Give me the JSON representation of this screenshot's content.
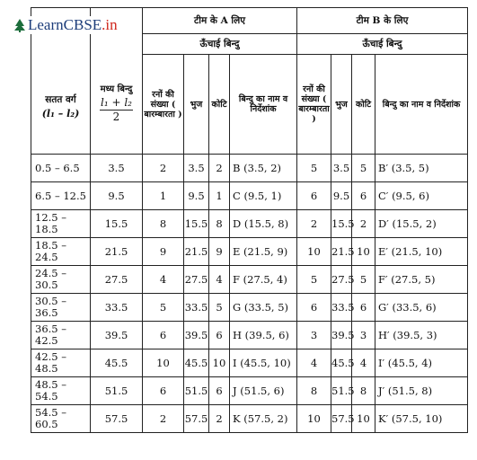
{
  "logo": {
    "name": "LearnCBSE",
    "tld": ".in"
  },
  "header": {
    "team_a": "टीम के A लिए",
    "team_b": "टीम B के लिए",
    "height_points": "ऊँचाई बिन्दु",
    "class_col": "सतत वर्ग",
    "class_col_sym": "(l₁ – l₂)",
    "mid_col": "मध्य बिन्दु",
    "mid_num": "l₁ + l₂",
    "mid_den": "2",
    "overs_col": "रनों की संख्या ( बारम्बारता )",
    "arm_col": "भुज",
    "koti_col": "कोटि",
    "name_col": "बिन्दु का नाम व निर्देशांक"
  },
  "rows": [
    {
      "cls": "0.5 – 6.5",
      "mid": "3.5",
      "a_runs": "2",
      "a_x": "3.5",
      "a_y": "2",
      "a_pt": "B (3.5, 2)",
      "b_runs": "5",
      "b_x": "3.5",
      "b_y": "5",
      "b_pt": "B′ (3.5, 5)"
    },
    {
      "cls": "6.5 – 12.5",
      "mid": "9.5",
      "a_runs": "1",
      "a_x": "9.5",
      "a_y": "1",
      "a_pt": "C (9.5, 1)",
      "b_runs": "6",
      "b_x": "9.5",
      "b_y": "6",
      "b_pt": "C′ (9.5, 6)"
    },
    {
      "cls": "12.5 – 18.5",
      "mid": "15.5",
      "a_runs": "8",
      "a_x": "15.5",
      "a_y": "8",
      "a_pt": "D (15.5, 8)",
      "b_runs": "2",
      "b_x": "15.5",
      "b_y": "2",
      "b_pt": "D′ (15.5, 2)"
    },
    {
      "cls": "18.5 – 24.5",
      "mid": "21.5",
      "a_runs": "9",
      "a_x": "21.5",
      "a_y": "9",
      "a_pt": "E (21.5, 9)",
      "b_runs": "10",
      "b_x": "21.5",
      "b_y": "10",
      "b_pt": "E′ (21.5, 10)"
    },
    {
      "cls": "24.5 – 30.5",
      "mid": "27.5",
      "a_runs": "4",
      "a_x": "27.5",
      "a_y": "4",
      "a_pt": "F (27.5, 4)",
      "b_runs": "5",
      "b_x": "27.5",
      "b_y": "5",
      "b_pt": "F′ (27.5, 5)"
    },
    {
      "cls": "30.5 – 36.5",
      "mid": "33.5",
      "a_runs": "5",
      "a_x": "33.5",
      "a_y": "5",
      "a_pt": "G (33.5, 5)",
      "b_runs": "6",
      "b_x": "33.5",
      "b_y": "6",
      "b_pt": "G′ (33.5, 6)"
    },
    {
      "cls": "36.5 – 42.5",
      "mid": "39.5",
      "a_runs": "6",
      "a_x": "39.5",
      "a_y": "6",
      "a_pt": "H (39.5, 6)",
      "b_runs": "3",
      "b_x": "39.5",
      "b_y": "3",
      "b_pt": "H′ (39.5, 3)"
    },
    {
      "cls": "42.5 – 48.5",
      "mid": "45.5",
      "a_runs": "10",
      "a_x": "45.5",
      "a_y": "10",
      "a_pt": "I (45.5, 10)",
      "b_runs": "4",
      "b_x": "45.5",
      "b_y": "4",
      "b_pt": "I′ (45.5, 4)"
    },
    {
      "cls": "48.5 – 54.5",
      "mid": "51.5",
      "a_runs": "6",
      "a_x": "51.5",
      "a_y": "6",
      "a_pt": "J (51.5, 6)",
      "b_runs": "8",
      "b_x": "51.5",
      "b_y": "8",
      "b_pt": "J′ (51.5, 8)"
    },
    {
      "cls": "54.5 – 60.5",
      "mid": "57.5",
      "a_runs": "2",
      "a_x": "57.5",
      "a_y": "2",
      "a_pt": "K (57.5, 2)",
      "b_runs": "10",
      "b_x": "57.5",
      "b_y": "10",
      "b_pt": "K′ (57.5, 10)"
    }
  ]
}
